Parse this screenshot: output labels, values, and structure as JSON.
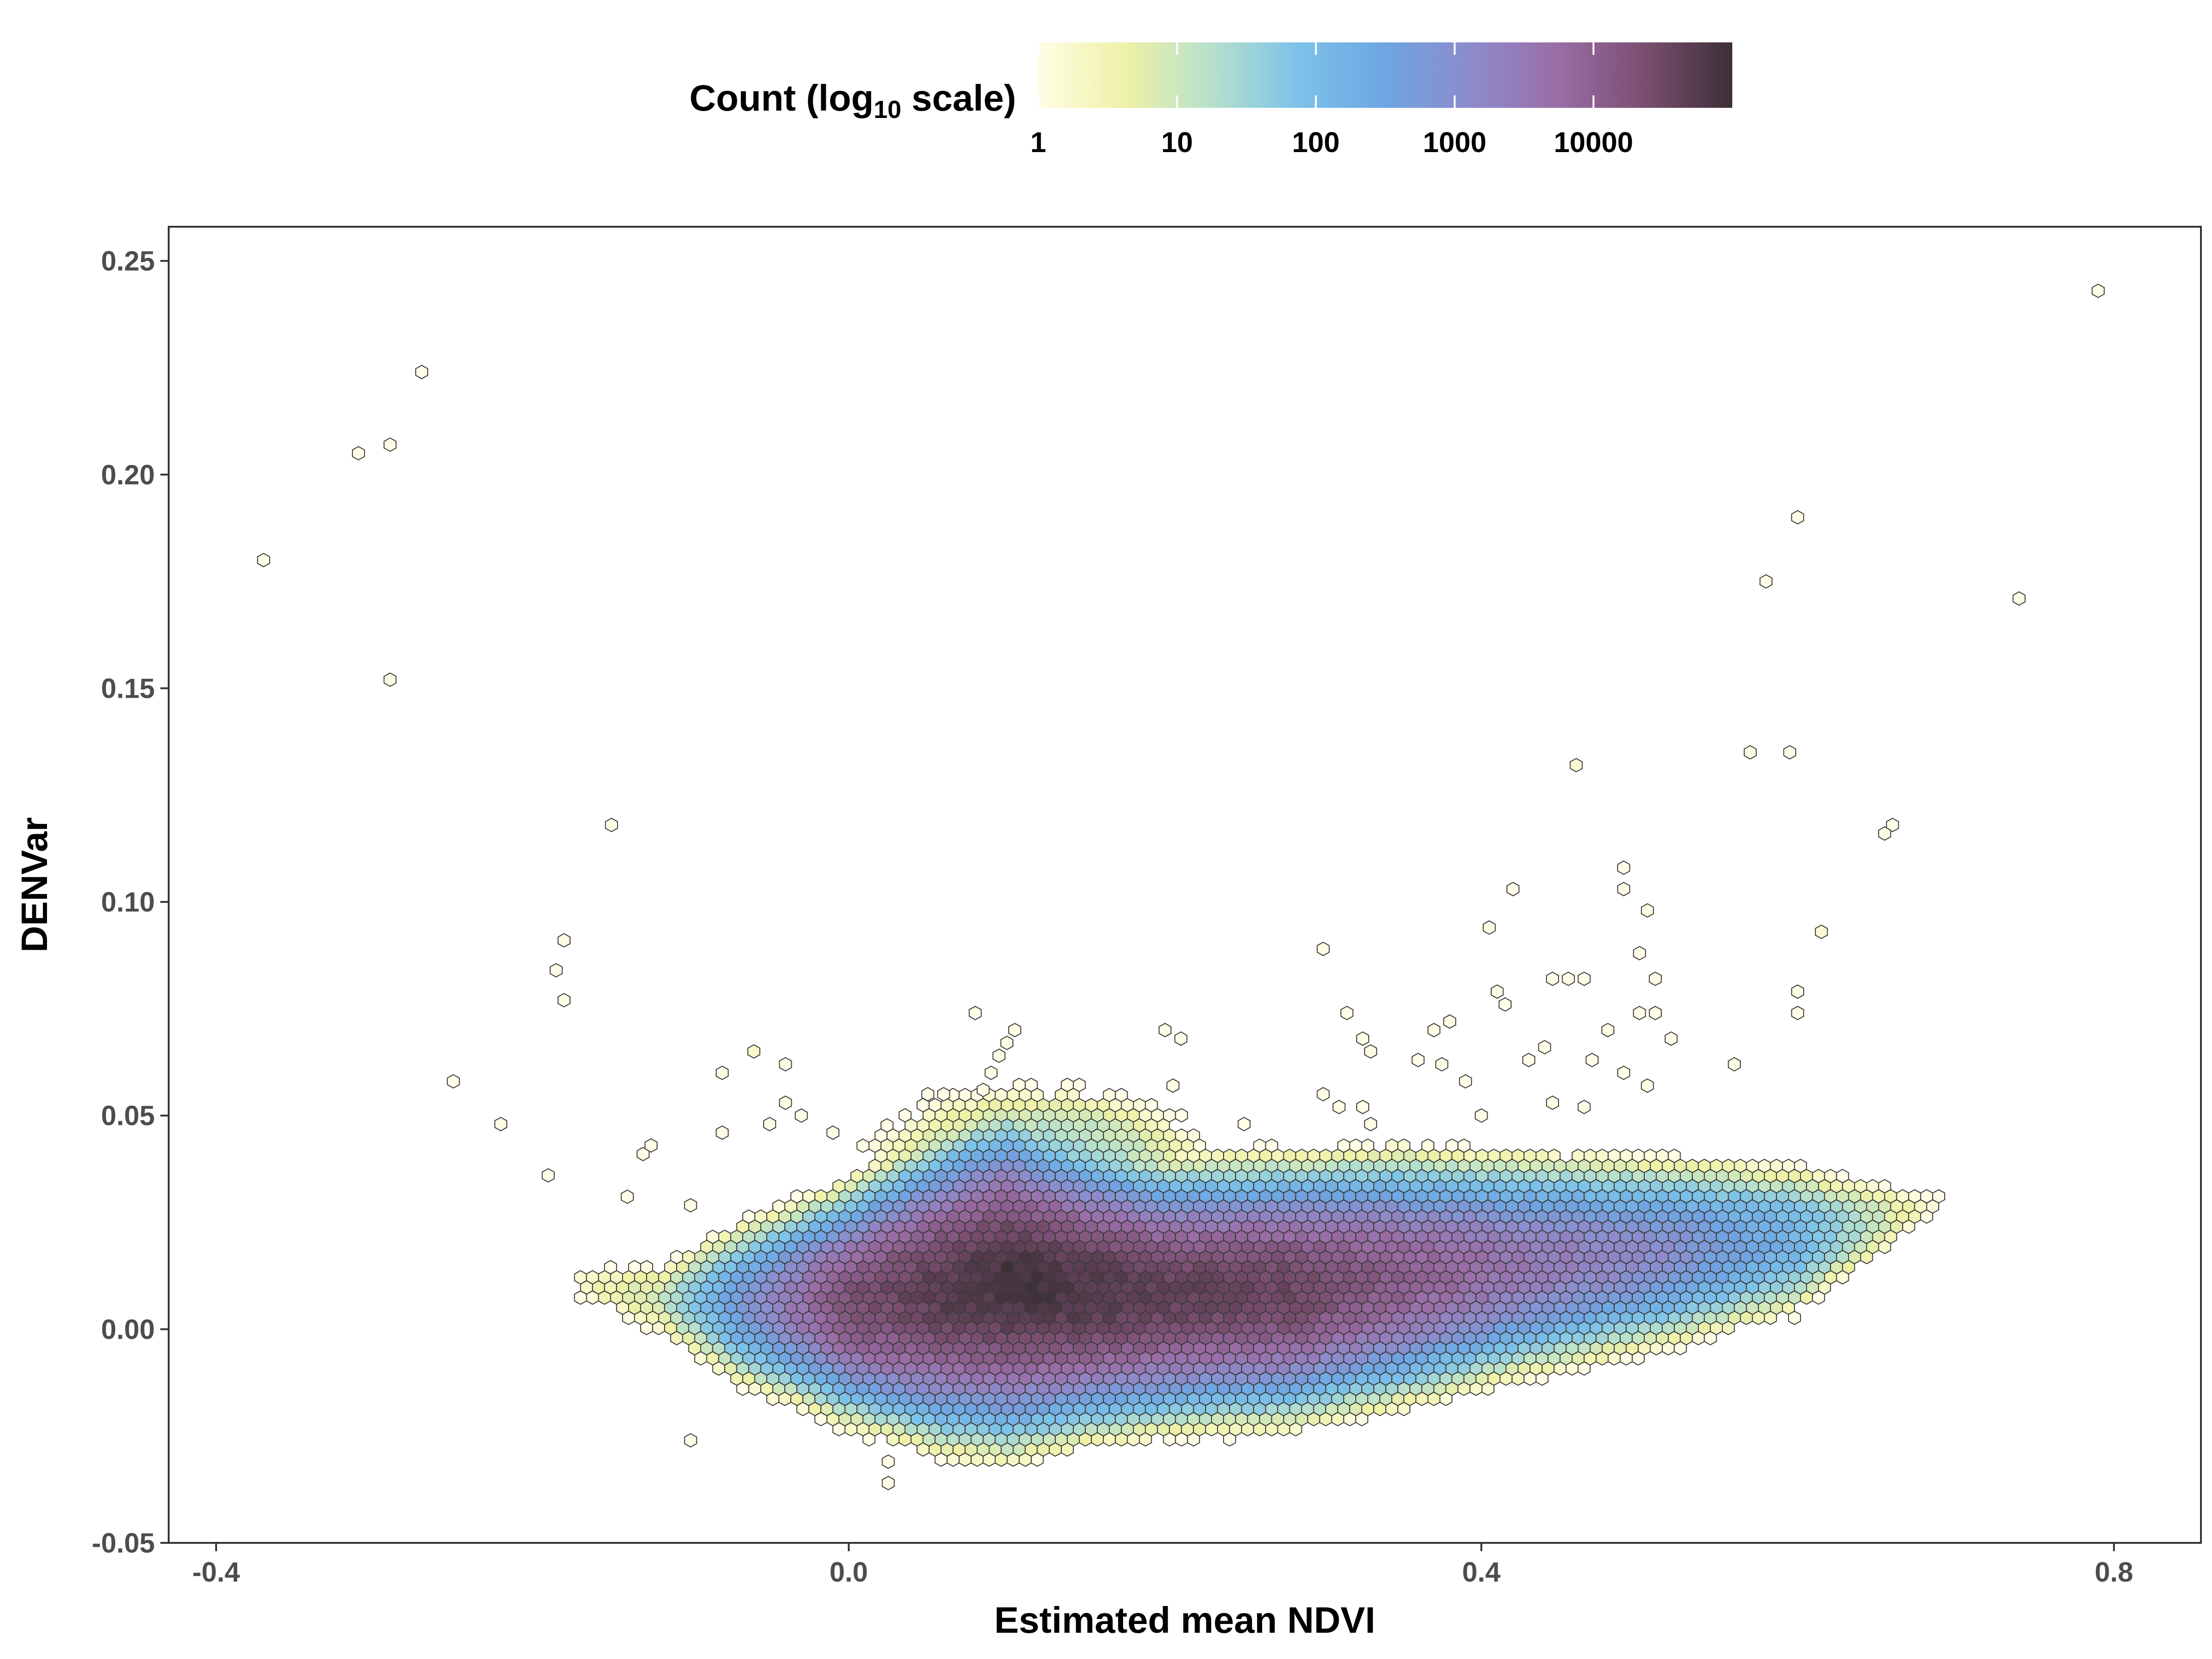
{
  "chart_data": {
    "type": "hexbin",
    "xlabel": "Estimated mean NDVI",
    "ylabel": "DENVar",
    "xlim": [
      -0.43,
      0.855
    ],
    "ylim": [
      -0.05,
      0.258
    ],
    "x_ticks": [
      -0.4,
      0.0,
      0.4,
      0.8
    ],
    "x_tick_labels": [
      "-0.4",
      "0.0",
      "0.4",
      "0.8"
    ],
    "y_ticks": [
      -0.05,
      0.0,
      0.05,
      0.1,
      0.15,
      0.2,
      0.25
    ],
    "y_tick_labels": [
      "-0.05",
      "0.00",
      "0.05",
      "0.10",
      "0.15",
      "0.20",
      "0.25"
    ],
    "grid": false,
    "legend": {
      "placement": "top",
      "title_main": "Count (log",
      "title_sub": "10",
      "title_end": " scale)",
      "breaks": [
        0,
        1,
        2,
        3,
        4
      ],
      "labels": [
        "1",
        "10",
        "100",
        "1000",
        "10000"
      ],
      "max_log10": 5.0,
      "colors": [
        "#fffde6",
        "#eef1a6",
        "#b6e0cc",
        "#7cc2e8",
        "#6ea5e2",
        "#8d8bcb",
        "#9a6da6",
        "#7a4e70",
        "#3d2f36"
      ]
    },
    "main_band": [
      {
        "x": -0.17,
        "y": 0.011,
        "sigma": 0.004,
        "peak_log10": 0.3
      },
      {
        "x": -0.12,
        "y": 0.007,
        "sigma": 0.006,
        "peak_log10": 1.0
      },
      {
        "x": -0.07,
        "y": 0.006,
        "sigma": 0.009,
        "peak_log10": 2.7
      },
      {
        "x": 0.0,
        "y": 0.006,
        "sigma": 0.011,
        "peak_log10": 4.3
      },
      {
        "x": 0.06,
        "y": 0.009,
        "sigma": 0.014,
        "peak_log10": 4.7
      },
      {
        "x": 0.1,
        "y": 0.011,
        "sigma": 0.015,
        "peak_log10": 4.9
      },
      {
        "x": 0.15,
        "y": 0.009,
        "sigma": 0.013,
        "peak_log10": 4.8
      },
      {
        "x": 0.2,
        "y": 0.008,
        "sigma": 0.012,
        "peak_log10": 4.6
      },
      {
        "x": 0.28,
        "y": 0.009,
        "sigma": 0.012,
        "peak_log10": 4.5
      },
      {
        "x": 0.35,
        "y": 0.012,
        "sigma": 0.012,
        "peak_log10": 4.0
      },
      {
        "x": 0.43,
        "y": 0.015,
        "sigma": 0.011,
        "peak_log10": 3.5
      },
      {
        "x": 0.52,
        "y": 0.018,
        "sigma": 0.01,
        "peak_log10": 3.0
      },
      {
        "x": 0.6,
        "y": 0.021,
        "sigma": 0.009,
        "peak_log10": 2.2
      },
      {
        "x": 0.66,
        "y": 0.026,
        "sigma": 0.006,
        "peak_log10": 0.8
      },
      {
        "x": 0.69,
        "y": 0.03,
        "sigma": 0.003,
        "peak_log10": 0.1
      }
    ],
    "bump": {
      "x": 0.12,
      "y": 0.038,
      "sx": 0.07,
      "sy": 0.012,
      "peak_log10": 1.6
    },
    "sparse_points": [
      [
        0.79,
        0.243,
        0
      ],
      [
        -0.27,
        0.224,
        0
      ],
      [
        -0.29,
        0.207,
        0
      ],
      [
        -0.31,
        0.205,
        0
      ],
      [
        -0.37,
        0.18,
        0
      ],
      [
        -0.29,
        0.152,
        0
      ],
      [
        -0.15,
        0.118,
        0
      ],
      [
        -0.18,
        0.091,
        0
      ],
      [
        -0.185,
        0.084,
        0
      ],
      [
        -0.18,
        0.077,
        0
      ],
      [
        -0.25,
        0.058,
        0
      ],
      [
        -0.22,
        0.048,
        0
      ],
      [
        -0.19,
        0.036,
        0
      ],
      [
        -0.14,
        0.031,
        0
      ],
      [
        -0.13,
        0.041,
        0
      ],
      [
        -0.125,
        0.043,
        0
      ],
      [
        -0.1,
        0.029,
        0
      ],
      [
        -0.08,
        0.06,
        0
      ],
      [
        -0.08,
        0.046,
        0
      ],
      [
        -0.06,
        0.065,
        0.3
      ],
      [
        -0.04,
        0.062,
        0
      ],
      [
        -0.04,
        0.053,
        0
      ],
      [
        -0.03,
        0.05,
        0
      ],
      [
        -0.05,
        0.048,
        0
      ],
      [
        -0.01,
        0.046,
        0
      ],
      [
        -0.1,
        -0.026,
        0
      ],
      [
        0.025,
        -0.031,
        0
      ],
      [
        0.025,
        -0.036,
        0
      ],
      [
        0.05,
        0.055,
        0
      ],
      [
        0.06,
        0.055,
        0
      ],
      [
        0.085,
        0.056,
        0
      ],
      [
        0.08,
        0.074,
        0
      ],
      [
        0.1,
        0.067,
        0
      ],
      [
        0.095,
        0.064,
        0
      ],
      [
        0.09,
        0.06,
        0
      ],
      [
        0.105,
        0.07,
        0
      ],
      [
        0.3,
        0.089,
        0
      ],
      [
        0.315,
        0.074,
        0
      ],
      [
        0.325,
        0.068,
        0
      ],
      [
        0.33,
        0.065,
        0
      ],
      [
        0.36,
        0.063,
        0
      ],
      [
        0.37,
        0.07,
        0
      ],
      [
        0.38,
        0.072,
        0
      ],
      [
        0.375,
        0.062,
        0
      ],
      [
        0.39,
        0.058,
        0
      ],
      [
        0.4,
        0.05,
        0
      ],
      [
        0.42,
        0.103,
        0
      ],
      [
        0.405,
        0.094,
        0
      ],
      [
        0.41,
        0.079,
        0
      ],
      [
        0.415,
        0.076,
        0
      ],
      [
        0.43,
        0.063,
        0
      ],
      [
        0.44,
        0.066,
        0
      ],
      [
        0.445,
        0.082,
        0
      ],
      [
        0.455,
        0.082,
        0
      ],
      [
        0.465,
        0.082,
        0
      ],
      [
        0.445,
        0.053,
        0
      ],
      [
        0.46,
        0.132,
        0.2
      ],
      [
        0.49,
        0.108,
        0
      ],
      [
        0.49,
        0.103,
        0
      ],
      [
        0.505,
        0.098,
        0
      ],
      [
        0.5,
        0.088,
        0
      ],
      [
        0.51,
        0.082,
        0
      ],
      [
        0.51,
        0.074,
        0
      ],
      [
        0.52,
        0.068,
        0
      ],
      [
        0.5,
        0.074,
        0
      ],
      [
        0.48,
        0.07,
        0
      ],
      [
        0.47,
        0.063,
        0
      ],
      [
        0.49,
        0.06,
        0
      ],
      [
        0.505,
        0.057,
        0
      ],
      [
        0.465,
        0.052,
        0
      ],
      [
        0.56,
        0.062,
        0
      ],
      [
        0.57,
        0.135,
        0
      ],
      [
        0.58,
        0.175,
        0
      ],
      [
        0.6,
        0.19,
        0
      ],
      [
        0.595,
        0.135,
        0
      ],
      [
        0.6,
        0.079,
        0
      ],
      [
        0.6,
        0.074,
        0
      ],
      [
        0.615,
        0.093,
        0.2
      ],
      [
        0.66,
        0.118,
        0
      ],
      [
        0.655,
        0.116,
        0
      ],
      [
        0.74,
        0.171,
        0
      ],
      [
        0.2,
        0.07,
        0
      ],
      [
        0.21,
        0.068,
        0
      ],
      [
        0.205,
        0.057,
        0
      ],
      [
        0.25,
        0.048,
        0
      ],
      [
        0.3,
        0.055,
        0
      ],
      [
        0.31,
        0.052,
        0
      ],
      [
        0.325,
        0.052,
        0
      ],
      [
        0.33,
        0.048,
        0
      ]
    ]
  }
}
